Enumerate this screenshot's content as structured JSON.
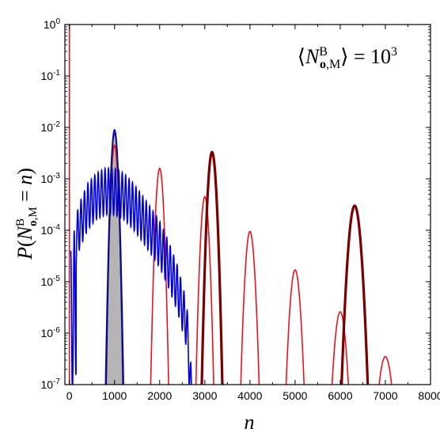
{
  "chart_data": {
    "type": "line",
    "ylabel": "P(N^B_o,M = n)",
    "xlabel": "n",
    "annotation": "⟨N^B_o,M⟩ = 10^3",
    "xlim": [
      -100,
      8000
    ],
    "ylim": [
      1e-07,
      1
    ],
    "y_scale": "log",
    "grid": false,
    "legend": "none",
    "x_ticks": [
      0,
      1000,
      2000,
      3000,
      4000,
      5000,
      6000,
      7000,
      8000
    ],
    "y_ticks": [
      {
        "v": 1,
        "base": "10",
        "exp": "0"
      },
      {
        "v": 0.1,
        "base": "10",
        "exp": "-1"
      },
      {
        "v": 0.01,
        "base": "10",
        "exp": "-2"
      },
      {
        "v": 0.001,
        "base": "10",
        "exp": "-3"
      },
      {
        "v": 0.0001,
        "base": "10",
        "exp": "-4"
      },
      {
        "v": 1e-05,
        "base": "10",
        "exp": "-5"
      },
      {
        "v": 1e-06,
        "base": "10",
        "exp": "-6"
      },
      {
        "v": 1e-07,
        "base": "10",
        "exp": "-7"
      }
    ],
    "series": [
      {
        "color": "#e8141c",
        "style": "red peaks",
        "peaks": [
          {
            "center": 0,
            "height": 1,
            "halfwidth": 8
          },
          {
            "center": 1000,
            "height": 0.0045,
            "halfwidth": 200
          },
          {
            "center": 2000,
            "height": 0.0016,
            "halfwidth": 210
          },
          {
            "center": 3000,
            "height": 0.00045,
            "halfwidth": 210
          },
          {
            "center": 4000,
            "height": 9.5e-05,
            "halfwidth": 220
          },
          {
            "center": 5000,
            "height": 1.7e-05,
            "halfwidth": 220
          },
          {
            "center": 6000,
            "height": 2.6e-06,
            "halfwidth": 210
          },
          {
            "center": 7000,
            "height": 3.5e-07,
            "halfwidth": 190
          }
        ]
      },
      {
        "color": "#7a0000",
        "style": "dark red peaks",
        "peaks": [
          {
            "center": 3160,
            "height": 0.0033,
            "halfwidth": 240
          },
          {
            "center": 6320,
            "height": 0.0003,
            "halfwidth": 310
          }
        ]
      },
      {
        "color": "#0000dd",
        "style": "oscillating blue",
        "envelope": [
          [
            30,
            4e-05
          ],
          [
            200,
            0.0003
          ],
          [
            400,
            0.0008
          ],
          [
            600,
            0.0013
          ],
          [
            800,
            0.0016
          ],
          [
            1000,
            0.0016
          ],
          [
            1200,
            0.0013
          ],
          [
            1400,
            0.00085
          ],
          [
            1600,
            0.0005
          ],
          [
            1800,
            0.00028
          ],
          [
            2000,
            0.00015
          ],
          [
            2200,
            6e-05
          ],
          [
            2400,
            2e-05
          ],
          [
            2600,
            4e-06
          ],
          [
            2720,
            1e-07
          ]
        ],
        "oscillation_period": 76,
        "peak": {
          "center": 1000,
          "height": 0.009,
          "halfwidth": 210
        }
      },
      {
        "color": "#b0b0b0",
        "style": "gray filled peak",
        "peaks": [
          {
            "center": 1000,
            "height": 0.0088,
            "halfwidth": 180
          }
        ]
      }
    ]
  }
}
